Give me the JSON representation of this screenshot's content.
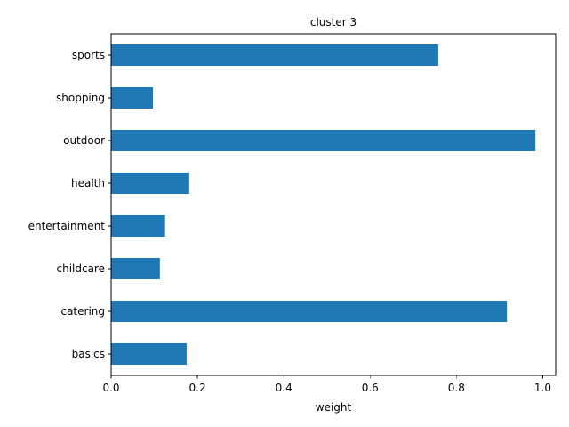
{
  "chart_data": {
    "type": "bar",
    "orientation": "horizontal",
    "title": "cluster 3",
    "xlabel": "weight",
    "ylabel": "",
    "categories": [
      "basics",
      "catering",
      "childcare",
      "entertainment",
      "health",
      "outdoor",
      "shopping",
      "sports"
    ],
    "values": [
      0.175,
      0.917,
      0.113,
      0.125,
      0.181,
      0.983,
      0.097,
      0.758
    ],
    "xlim": [
      0,
      1.03
    ],
    "xticks": [
      0.0,
      0.2,
      0.4,
      0.6,
      0.8,
      1.0
    ],
    "xtick_labels": [
      "0.0",
      "0.2",
      "0.4",
      "0.6",
      "0.8",
      "1.0"
    ],
    "bar_color": "#1f77b4",
    "grid": false,
    "legend": "none"
  }
}
